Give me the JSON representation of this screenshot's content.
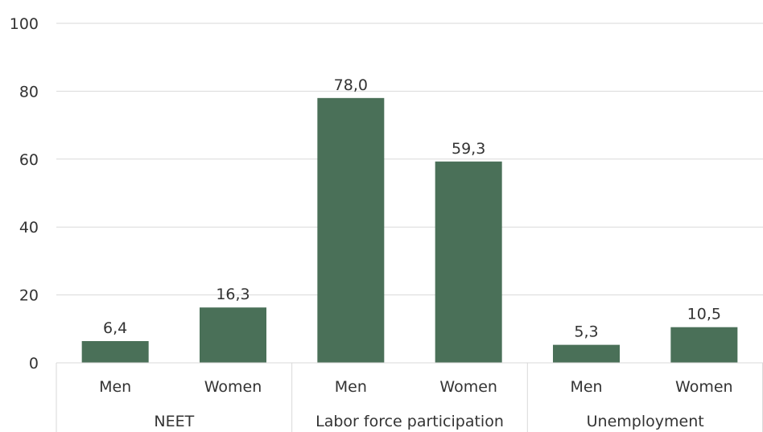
{
  "chart_data": {
    "type": "bar",
    "bar_color": "#4a7058",
    "grid_color": "#d9d9d9",
    "ylim": [
      0,
      100
    ],
    "yticks": [
      0,
      20,
      40,
      60,
      80,
      100
    ],
    "grid": true,
    "groups": [
      {
        "name": "NEET",
        "bars": [
          {
            "category": "Men",
            "value": 6.4,
            "label": "6,4"
          },
          {
            "category": "Women",
            "value": 16.3,
            "label": "16,3"
          }
        ]
      },
      {
        "name": "Labor force participation",
        "bars": [
          {
            "category": "Men",
            "value": 78.0,
            "label": "78,0"
          },
          {
            "category": "Women",
            "value": 59.3,
            "label": "59,3"
          }
        ]
      },
      {
        "name": "Unemployment",
        "bars": [
          {
            "category": "Men",
            "value": 5.3,
            "label": "5,3"
          },
          {
            "category": "Women",
            "value": 10.5,
            "label": "10,5"
          }
        ]
      }
    ]
  }
}
